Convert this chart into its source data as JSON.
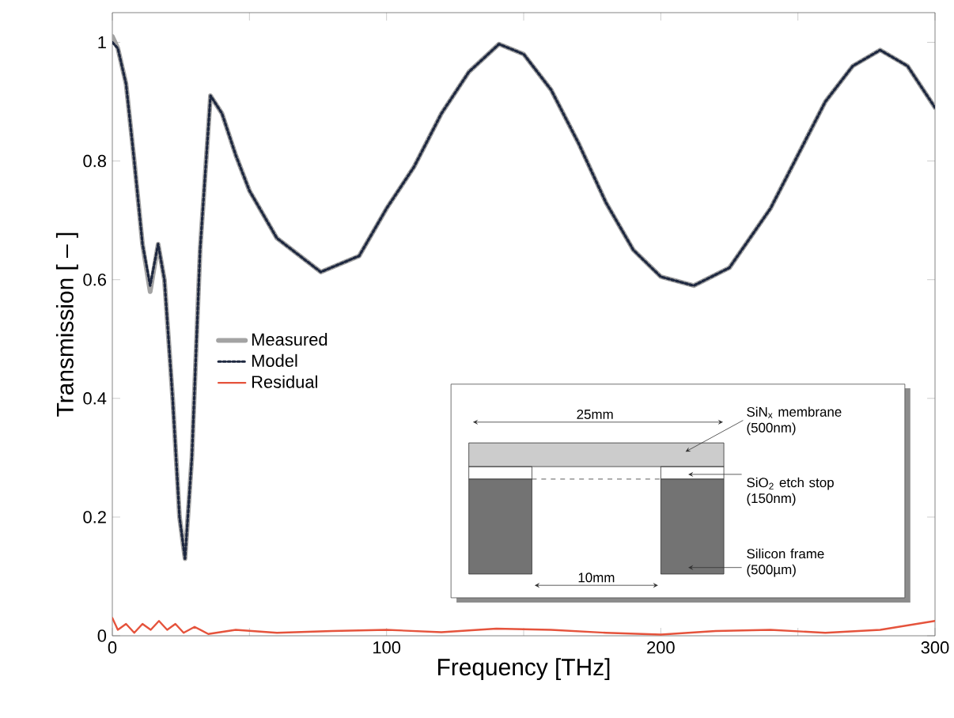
{
  "chart_data": {
    "type": "line",
    "xlabel": "Frequency [THz]",
    "ylabel": "Transmission [ – ]",
    "xlim": [
      0,
      300
    ],
    "ylim": [
      0,
      1.05
    ],
    "xticks": [
      0,
      {
        "value": 50,
        "label": null
      },
      100,
      {
        "value": 150,
        "label": null
      },
      200,
      {
        "value": 250,
        "label": null
      },
      300
    ],
    "yticks": [
      0,
      0.2,
      0.4,
      0.6,
      0.8,
      1
    ],
    "legend": "left",
    "grid": false,
    "series": [
      {
        "name": "Measured",
        "color": "#a3a3a3",
        "line_style": "solid",
        "x": [
          0,
          2,
          5,
          8,
          11,
          13.8,
          16.7,
          19,
          22,
          24.5,
          26.5,
          29,
          32,
          35.8,
          40,
          45,
          50,
          60,
          76,
          90,
          100,
          110,
          120,
          130,
          141,
          150,
          160,
          170,
          180,
          190,
          200,
          212,
          225,
          240,
          250,
          260,
          270,
          280,
          290,
          300
        ],
        "values": [
          1.01,
          0.99,
          0.93,
          0.8,
          0.66,
          0.58,
          0.66,
          0.6,
          0.4,
          0.2,
          0.13,
          0.3,
          0.65,
          0.91,
          0.88,
          0.81,
          0.75,
          0.67,
          0.613,
          0.64,
          0.72,
          0.79,
          0.88,
          0.95,
          0.997,
          0.98,
          0.92,
          0.83,
          0.73,
          0.65,
          0.605,
          0.59,
          0.62,
          0.72,
          0.81,
          0.9,
          0.96,
          0.987,
          0.96,
          0.89
        ]
      },
      {
        "name": "Model",
        "color": "#1e2840",
        "line_style": "dotted",
        "x": [
          0,
          2,
          5,
          8,
          11,
          13.8,
          16.7,
          19,
          22,
          24.5,
          26.5,
          29,
          32,
          35.8,
          40,
          45,
          50,
          60,
          76,
          90,
          100,
          110,
          120,
          130,
          141,
          150,
          160,
          170,
          180,
          190,
          200,
          212,
          225,
          240,
          250,
          260,
          270,
          280,
          290,
          300
        ],
        "values": [
          1.0,
          0.99,
          0.93,
          0.8,
          0.66,
          0.59,
          0.66,
          0.6,
          0.4,
          0.2,
          0.13,
          0.3,
          0.65,
          0.91,
          0.88,
          0.81,
          0.75,
          0.67,
          0.613,
          0.64,
          0.72,
          0.79,
          0.88,
          0.95,
          0.997,
          0.98,
          0.92,
          0.83,
          0.73,
          0.65,
          0.605,
          0.59,
          0.62,
          0.72,
          0.81,
          0.9,
          0.96,
          0.987,
          0.96,
          0.89
        ]
      },
      {
        "name": "Residual",
        "color": "#e5533c",
        "line_style": "solid",
        "x": [
          0,
          2,
          5,
          8,
          11,
          14,
          17,
          20,
          23,
          26,
          30,
          35,
          45,
          60,
          80,
          100,
          120,
          140,
          160,
          180,
          200,
          220,
          240,
          260,
          280,
          300
        ],
        "values": [
          0.03,
          0.01,
          0.02,
          0.005,
          0.02,
          0.01,
          0.025,
          0.01,
          0.02,
          0.005,
          0.015,
          0.003,
          0.01,
          0.005,
          0.008,
          0.01,
          0.006,
          0.012,
          0.01,
          0.005,
          0.002,
          0.008,
          0.01,
          0.005,
          0.01,
          0.025
        ]
      }
    ],
    "annotations": [
      "25mm",
      "SiN$_{x}$ membrane (500nm)",
      "SiO$_{2}$ etch stop (150nm)",
      "Silicon frame (500µm)",
      "10mm"
    ]
  }
}
